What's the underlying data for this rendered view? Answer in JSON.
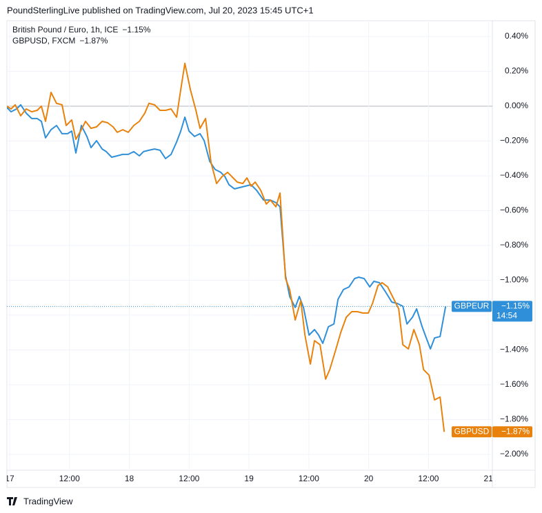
{
  "header": "PoundSterlingLive published on TradingView.com, Jul 20, 2023 15:45 UTC+1",
  "footer": "TradingView",
  "chart_data": {
    "type": "line",
    "xlim": [
      -0.55,
      96.8
    ],
    "xticks": [
      {
        "value": 0,
        "label": "17"
      },
      {
        "value": 12,
        "label": "12:00"
      },
      {
        "value": 24,
        "label": "18"
      },
      {
        "value": 36,
        "label": "12:00"
      },
      {
        "value": 48,
        "label": "19"
      },
      {
        "value": 60,
        "label": "12:00"
      },
      {
        "value": 72,
        "label": "20"
      },
      {
        "value": 84,
        "label": "12:00"
      },
      {
        "value": 96,
        "label": "21"
      }
    ],
    "ylim": [
      -2.091,
      0.491
    ],
    "yticks": [
      {
        "value": 0.4,
        "label": "0.40%"
      },
      {
        "value": 0.2,
        "label": "0.20%"
      },
      {
        "value": 0,
        "label": "0.00%"
      },
      {
        "value": -0.2,
        "label": "−0.20%"
      },
      {
        "value": -0.4,
        "label": "−0.40%"
      },
      {
        "value": -0.6,
        "label": "−0.60%"
      },
      {
        "value": -0.8,
        "label": "−0.80%"
      },
      {
        "value": -1.0,
        "label": "−1.00%"
      },
      {
        "value": -1.2,
        "label": "−1.20%"
      },
      {
        "value": -1.4,
        "label": "−1.40%"
      },
      {
        "value": -1.6,
        "label": "−1.60%"
      },
      {
        "value": -1.8,
        "label": "−1.80%"
      },
      {
        "value": -2.0,
        "label": "−2.00%"
      }
    ],
    "grid": true,
    "series": [
      {
        "name": "British Pound / Euro, 1h, ICE",
        "symbol": "GBPEUR",
        "color": "#2f8fd8",
        "last_value": -1.15,
        "last_label": "−1.15%",
        "countdown": "14:54",
        "x": [
          -0.55,
          0.28,
          1.38,
          2.21,
          3.32,
          4.43,
          5.53,
          6.36,
          7.19,
          8.3,
          9.41,
          10.51,
          11.62,
          12.45,
          13.28,
          14.39,
          15.49,
          16.32,
          17.43,
          18.54,
          19.37,
          20.47,
          21.58,
          22.69,
          23.79,
          24.9,
          26.01,
          26.84,
          27.94,
          29.05,
          30.16,
          31.26,
          32.37,
          33.48,
          34.31,
          35.14,
          35.97,
          37.07,
          38.18,
          39.01,
          40.12,
          41.22,
          42.33,
          43.16,
          43.99,
          45.1,
          46.2,
          47.31,
          48.42,
          49.52,
          50.91,
          52.29,
          53.4,
          54.23,
          55.33,
          56.16,
          57.27,
          58.1,
          58.93,
          60.04,
          61.14,
          61.97,
          62.8,
          63.91,
          65.02,
          65.85,
          66.95,
          68.06,
          69.17,
          70.0,
          71.1,
          72.21,
          73.04,
          74.15,
          75.25,
          76.64,
          77.74,
          78.85,
          79.68,
          80.79,
          81.62,
          82.72,
          83.55,
          84.38,
          85.21,
          86.32,
          87.42
        ],
        "values": [
          -0.008,
          -0.032,
          -0.016,
          0.008,
          -0.04,
          -0.071,
          -0.071,
          -0.087,
          -0.182,
          -0.135,
          -0.111,
          -0.158,
          -0.158,
          -0.143,
          -0.269,
          -0.111,
          -0.174,
          -0.238,
          -0.198,
          -0.246,
          -0.261,
          -0.293,
          -0.285,
          -0.277,
          -0.277,
          -0.261,
          -0.285,
          -0.261,
          -0.253,
          -0.246,
          -0.253,
          -0.301,
          -0.277,
          -0.206,
          -0.143,
          -0.063,
          -0.143,
          -0.174,
          -0.158,
          -0.198,
          -0.317,
          -0.364,
          -0.38,
          -0.404,
          -0.451,
          -0.475,
          -0.467,
          -0.459,
          -0.451,
          -0.483,
          -0.539,
          -0.539,
          -0.554,
          -0.578,
          -0.974,
          -1.093,
          -1.156,
          -1.093,
          -1.156,
          -1.315,
          -1.283,
          -1.315,
          -1.362,
          -1.267,
          -1.251,
          -1.109,
          -1.053,
          -1.038,
          -0.99,
          -0.982,
          -0.99,
          -1.038,
          -1.006,
          -1.014,
          -1.061,
          -1.125,
          -1.133,
          -1.149,
          -1.251,
          -1.212,
          -1.164,
          -1.267,
          -1.331,
          -1.394,
          -1.331,
          -1.323,
          -1.15
        ]
      },
      {
        "name": "GBPUSD, FXCM",
        "symbol": "GBPUSD",
        "color": "#e8820c",
        "last_value": -1.87,
        "last_label": "−1.87%",
        "x": [
          -0.55,
          0.28,
          1.11,
          2.21,
          3.32,
          4.43,
          5.53,
          6.36,
          7.19,
          8.3,
          9.41,
          10.51,
          11.34,
          12.45,
          13.28,
          14.39,
          15.22,
          16.32,
          17.43,
          18.54,
          19.64,
          20.75,
          21.58,
          22.69,
          23.79,
          24.9,
          26.01,
          27.11,
          27.94,
          29.05,
          30.16,
          31.26,
          32.37,
          33.48,
          34.31,
          35.14,
          36.24,
          37.35,
          38.18,
          39.29,
          40.39,
          41.5,
          42.61,
          43.71,
          44.82,
          45.65,
          46.76,
          47.59,
          48.42,
          49.25,
          50.35,
          51.46,
          52.29,
          53.4,
          54.23,
          55.33,
          56.16,
          57.27,
          58.38,
          59.21,
          60.31,
          61.14,
          62.25,
          63.36,
          64.19,
          65.29,
          66.4,
          67.51,
          68.61,
          69.72,
          70.83,
          71.93,
          72.76,
          73.87,
          74.7,
          75.81,
          76.91,
          78.02,
          78.85,
          79.96,
          81.06,
          82.17,
          83.0,
          84.11,
          85.21,
          86.32,
          87.15
        ],
        "values": [
          0,
          -0.016,
          0.008,
          -0.055,
          -0.016,
          -0.032,
          -0.024,
          0,
          -0.087,
          0.079,
          0.016,
          0.008,
          -0.111,
          -0.079,
          -0.19,
          -0.135,
          -0.087,
          -0.127,
          -0.119,
          -0.087,
          -0.095,
          -0.119,
          -0.15,
          -0.135,
          -0.15,
          -0.111,
          -0.087,
          -0.04,
          0.016,
          0.008,
          -0.024,
          -0.024,
          -0.016,
          -0.063,
          0.095,
          0.246,
          0.095,
          -0.024,
          -0.127,
          -0.071,
          -0.325,
          -0.444,
          -0.404,
          -0.38,
          -0.412,
          -0.436,
          -0.444,
          -0.412,
          -0.459,
          -0.436,
          -0.483,
          -0.562,
          -0.539,
          -0.578,
          -0.499,
          -0.99,
          -1.053,
          -1.228,
          -1.117,
          -1.315,
          -1.481,
          -1.347,
          -1.37,
          -1.568,
          -1.513,
          -1.41,
          -1.299,
          -1.212,
          -1.18,
          -1.18,
          -1.188,
          -1.188,
          -1.133,
          -1.03,
          -1.014,
          -1.038,
          -1.101,
          -1.164,
          -1.37,
          -1.394,
          -1.283,
          -1.37,
          -1.513,
          -1.545,
          -1.687,
          -1.671,
          -1.87
        ]
      }
    ]
  }
}
